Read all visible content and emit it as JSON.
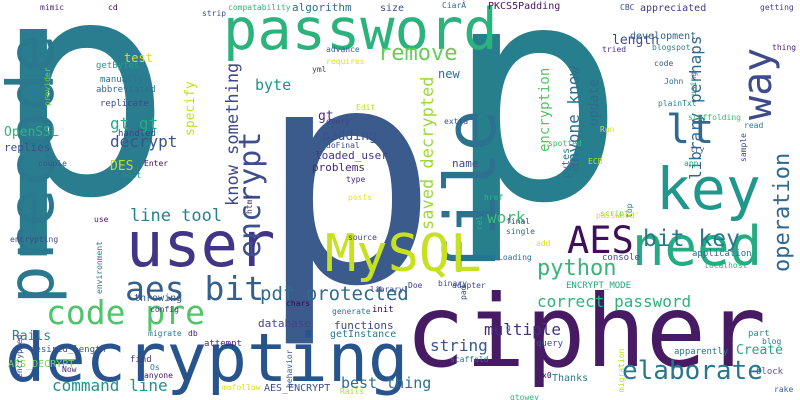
{
  "words": [
    {
      "text": "p",
      "color": "#2a7d8e"
    },
    {
      "text": "p",
      "color": "#277f8e"
    },
    {
      "text": "p",
      "color": "#3b5b8c"
    },
    {
      "text": "cipher",
      "color": "#471b63"
    },
    {
      "text": "decrypting",
      "color": "#27548c"
    },
    {
      "text": "user",
      "color": "#433585"
    },
    {
      "text": "password",
      "color": "#2cb27d"
    },
    {
      "text": "precode",
      "color": "#2a788e"
    },
    {
      "text": "file",
      "color": "#2c728e"
    },
    {
      "text": "key",
      "color": "#1f978b"
    },
    {
      "text": "need",
      "color": "#25ab82"
    },
    {
      "text": "MySQL",
      "color": "#c7e020"
    },
    {
      "text": "AES",
      "color": "#3f0f5a"
    },
    {
      "text": "way",
      "color": "#3e4a89"
    },
    {
      "text": "lt",
      "color": "#30688e"
    },
    {
      "text": "aes bit",
      "color": "#355f8d"
    },
    {
      "text": "code pre",
      "color": "#4fc46a"
    },
    {
      "text": "encrypt",
      "color": "#3c4f8a"
    },
    {
      "text": "elaborate",
      "color": "#2b758e"
    },
    {
      "text": "bit key",
      "color": "#2a788e"
    },
    {
      "text": "operation",
      "color": "#31688e"
    },
    {
      "text": "remove",
      "color": "#67cc5c"
    },
    {
      "text": "python",
      "color": "#34b679"
    },
    {
      "text": "pdf protected",
      "color": "#2f6b8e"
    },
    {
      "text": "line tool",
      "color": "#26828e"
    },
    {
      "text": "command line",
      "color": "#21918c"
    },
    {
      "text": "know something",
      "color": "#3e4989"
    },
    {
      "text": "saved decrypted",
      "color": "#9bd93c"
    },
    {
      "text": "correct password",
      "color": "#2eb37c"
    },
    {
      "text": "anyone know",
      "color": "#2e6e8e"
    },
    {
      "text": "library perhaps",
      "color": "#31688e"
    },
    {
      "text": "best thing",
      "color": "#2d708e"
    },
    {
      "text": "encryption",
      "color": "#52c569"
    },
    {
      "text": "multiple",
      "color": "#472d7b"
    },
    {
      "text": "work",
      "color": "#3dbc74"
    },
    {
      "text": "decrypt",
      "color": "#3b528b"
    },
    {
      "text": "gt gt",
      "color": "#25ac82"
    },
    {
      "text": "string",
      "color": "#38588c"
    },
    {
      "text": "Rails",
      "color": "#24878e"
    },
    {
      "text": "Create",
      "color": "#21a685"
    },
    {
      "text": "byte",
      "color": "#21918c"
    },
    {
      "text": "DES",
      "color": "#bddf26"
    },
    {
      "text": "update",
      "color": "#306a8e"
    },
    {
      "text": "padding",
      "color": "#3b528b"
    },
    {
      "text": "length",
      "color": "#3e4989"
    },
    {
      "text": "specify",
      "color": "#c2df23"
    },
    {
      "text": "database",
      "color": "#414487"
    },
    {
      "text": "functions",
      "color": "#3f4788"
    },
    {
      "text": "new",
      "color": "#2d708e"
    },
    {
      "text": "gt",
      "color": "#472f7d"
    },
    {
      "text": "loaded_user",
      "color": "#453581"
    },
    {
      "text": "pytes",
      "color": "#2c738e"
    },
    {
      "text": "name",
      "color": "#3d4e8a"
    },
    {
      "text": "test",
      "color": "#d8e219"
    },
    {
      "text": "problems",
      "color": "#482576"
    },
    {
      "text": "OpenSSL",
      "color": "#2fb47c"
    },
    {
      "text": "replies",
      "color": "#3d4d8a"
    },
    {
      "text": "algorithm",
      "color": "#2e6f8e"
    },
    {
      "text": "size",
      "color": "#3c508b"
    },
    {
      "text": "PKCS5Padding",
      "color": "#471164"
    },
    {
      "text": "appreciated",
      "color": "#443983"
    },
    {
      "text": "development",
      "color": "#33638d"
    },
    {
      "text": "getBytes",
      "color": "#1fa088"
    },
    {
      "text": "manually",
      "color": "#2b748e"
    },
    {
      "text": "abbreviated",
      "color": "#2e6e8e"
    },
    {
      "text": "replicate",
      "color": "#3f4889"
    },
    {
      "text": "handled",
      "color": "#433e85"
    },
    {
      "text": "Enter",
      "color": "#450559"
    },
    {
      "text": "AES_DECRYPT",
      "color": "#7ad151"
    },
    {
      "text": "AES_ENCRYPT",
      "color": "#3c508b"
    },
    {
      "text": "desired_length",
      "color": "#3b528b"
    },
    {
      "text": "throwing",
      "color": "#355e8d"
    },
    {
      "text": "getInstance",
      "color": "#287c8e"
    },
    {
      "text": "init",
      "color": "#440154"
    },
    {
      "text": "Thanks",
      "color": "#287d8e"
    },
    {
      "text": "attempt",
      "color": "#472a7a"
    },
    {
      "text": "ENCRYPT_MODE",
      "color": "#22a884"
    },
    {
      "text": "console",
      "color": "#3e4989"
    },
    {
      "text": "application",
      "color": "#2c718e"
    },
    {
      "text": "part",
      "color": "#1f988b"
    },
    {
      "text": "block",
      "color": "#31688e"
    },
    {
      "text": "apparently",
      "color": "#2d708e"
    },
    {
      "text": "query",
      "color": "#3e4989"
    },
    {
      "text": "find",
      "color": "#46337f"
    },
    {
      "text": "anyone",
      "color": "#481467"
    },
    {
      "text": "Now",
      "color": "#482173"
    },
    {
      "text": "db",
      "color": "#482374"
    },
    {
      "text": "config",
      "color": "#46327e"
    },
    {
      "text": "migrate",
      "color": "#2a778e"
    },
    {
      "text": "chars",
      "color": "#440154"
    },
    {
      "text": "generate",
      "color": "#2a768e"
    },
    {
      "text": "library",
      "color": "#404688"
    },
    {
      "text": "Doe",
      "color": "#453882"
    },
    {
      "text": "binary",
      "color": "#3b528b"
    },
    {
      "text": "John",
      "color": "#2e6d8e"
    },
    {
      "text": "plainTxt",
      "color": "#25848e"
    },
    {
      "text": "try",
      "color": "#3a538b"
    },
    {
      "text": "code",
      "color": "#38588c"
    },
    {
      "text": "tried",
      "color": "#463480"
    },
    {
      "text": "using",
      "color": "#24868e"
    },
    {
      "text": "extra",
      "color": "#3b518b"
    },
    {
      "text": "every",
      "color": "#424086"
    },
    {
      "text": "doFinal",
      "color": "#3e4c8a"
    },
    {
      "text": "spotted",
      "color": "#3dbc74"
    },
    {
      "text": "type",
      "color": "#482878"
    },
    {
      "text": "posts",
      "color": "#e5e419"
    },
    {
      "text": "source",
      "color": "#433d84"
    },
    {
      "text": "environment",
      "color": "#2c728e"
    },
    {
      "text": "mimic",
      "color": "#472c7a"
    },
    {
      "text": "cd",
      "color": "#440154"
    },
    {
      "text": "compatability",
      "color": "#2fb47c"
    },
    {
      "text": "strip",
      "color": "#3b528b"
    },
    {
      "text": "CiarÂ",
      "color": "#2f6b8e"
    },
    {
      "text": "CBC",
      "color": "#3d4e8a"
    },
    {
      "text": "getting",
      "color": "#433e85"
    },
    {
      "text": "thing",
      "color": "#482374"
    },
    {
      "text": "blogspot",
      "color": "#24868e"
    },
    {
      "text": "scaffolding",
      "color": "#3dbc74"
    },
    {
      "text": "localhost",
      "color": "#2fb47c"
    },
    {
      "text": "advance",
      "color": "#31688e"
    },
    {
      "text": "requires",
      "color": "#dde318"
    },
    {
      "text": "yml",
      "color": "#443a83"
    },
    {
      "text": "Edit",
      "color": "#bddf26"
    },
    {
      "text": "provider",
      "color": "#6ece58"
    },
    {
      "text": "host",
      "color": "#21908d"
    },
    {
      "text": "couple",
      "color": "#3b528b"
    },
    {
      "text": "exception",
      "color": "#2a788e"
    },
    {
      "text": "encrypting",
      "color": "#3e4989"
    },
    {
      "text": "encrypted",
      "color": "#3e4a89"
    },
    {
      "text": "use",
      "color": "#471365"
    },
    {
      "text": "html",
      "color": "#472c7a"
    },
    {
      "text": "href",
      "color": "#2fb47c"
    },
    {
      "text": "final",
      "color": "#424086"
    },
    {
      "text": "single",
      "color": "#306a8e"
    },
    {
      "text": "Loading",
      "color": "#2d708e"
    },
    {
      "text": "adapter",
      "color": "#3e4989"
    },
    {
      "text": "rel",
      "color": "#2fb47c"
    },
    {
      "text": "script",
      "color": "#7ad151"
    },
    {
      "text": "password'",
      "color": "#d8e219"
    },
    {
      "text": "top",
      "color": "#287d8e"
    },
    {
      "text": "app",
      "color": "#22a785"
    },
    {
      "text": "sample",
      "color": "#3e4989"
    },
    {
      "text": "read",
      "color": "#2a788e"
    },
    {
      "text": "blog",
      "color": "#2a788e"
    },
    {
      "text": "rake",
      "color": "#355f8d"
    },
    {
      "text": "add",
      "color": "#dde318"
    },
    {
      "text": "Run",
      "color": "#d8e219"
    },
    {
      "text": "ECB",
      "color": "#b5de2b"
    },
    {
      "text": "pad",
      "color": "#3e4989"
    },
    {
      "text": "scaffold",
      "color": "#2a788e"
    },
    {
      "text": "x0",
      "color": "#440154"
    },
    {
      "text": "gtowey",
      "color": "#2fb47c"
    },
    {
      "text": "migration",
      "color": "#b5de2b"
    },
    {
      "text": "behavior",
      "color": "#355f8d"
    },
    {
      "text": "mofollow",
      "color": "#d8e219"
    },
    {
      "text": "Os",
      "color": "#2a788e"
    },
    {
      "text": "Rails",
      "color": "#b5de2b"
    },
    {
      "text": "g",
      "color": "#2e6e8e"
    }
  ]
}
